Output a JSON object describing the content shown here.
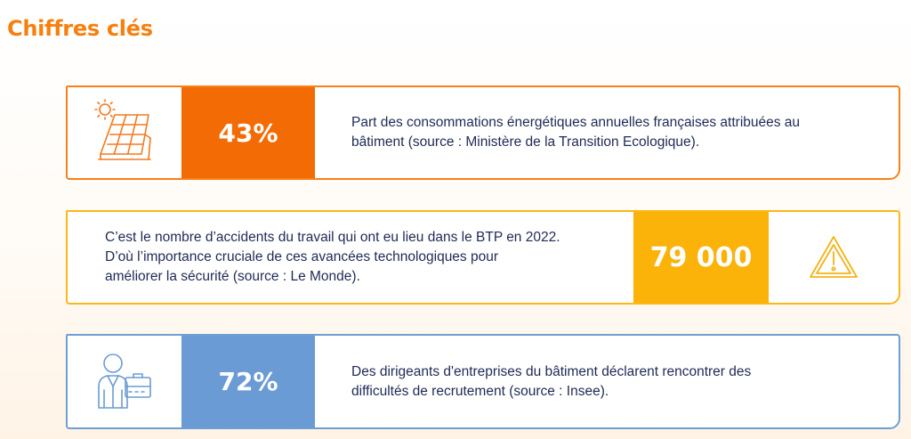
{
  "page": {
    "title": "Chiffres clés"
  },
  "cards": [
    {
      "value": "43%",
      "icon": "solar-panel-icon",
      "color": "#f36b05",
      "lines": [
        "Part des consommations énergétiques annuelles françaises attribuées au",
        "bâtiment (source : Ministère de la Transition Ecologique)."
      ]
    },
    {
      "value": "79 000",
      "icon": "warning-icon",
      "color": "#fbb30a",
      "lines": [
        "C’est le nombre d’accidents du travail qui ont eu lieu dans le BTP en 2022.",
        "D’où l’importance cruciale de ces avancées technologiques pour",
        "améliorer la sécurité (source : Le Monde)."
      ]
    },
    {
      "value": "72%",
      "icon": "businessman-briefcase-icon",
      "color": "#6b9bd4",
      "lines": [
        "Des dirigeants d'entreprises du bâtiment déclarent rencontrer des",
        "difficultés de recrutement (source : Insee)."
      ]
    }
  ]
}
